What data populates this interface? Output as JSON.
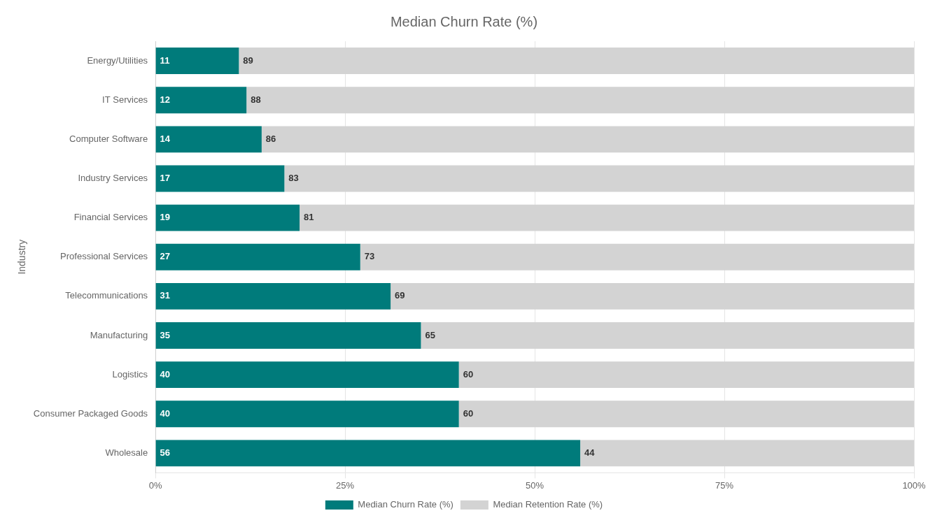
{
  "chart_data": {
    "type": "bar",
    "orientation": "horizontal",
    "stacked": true,
    "title": "Median Churn Rate (%)",
    "ylabel": "Industry",
    "categories": [
      "Energy/Utilities",
      "IT Services",
      "Computer Software",
      "Industry Services",
      "Financial Services",
      "Professional Services",
      "Telecommunications",
      "Manufacturing",
      "Logistics",
      "Consumer Packaged Goods",
      "Wholesale"
    ],
    "series": [
      {
        "name": "Median Churn Rate (%)",
        "color": "#007B7B",
        "values": [
          11,
          12,
          14,
          17,
          19,
          27,
          31,
          35,
          40,
          40,
          56
        ]
      },
      {
        "name": "Median Retention Rate (%)",
        "color": "#D3D3D3",
        "values": [
          89,
          88,
          86,
          83,
          81,
          73,
          69,
          65,
          60,
          60,
          44
        ]
      }
    ],
    "xlim": [
      0,
      100
    ],
    "xticks": [
      {
        "value": 0,
        "label": "0%"
      },
      {
        "value": 25,
        "label": "25%"
      },
      {
        "value": 50,
        "label": "50%"
      },
      {
        "value": 75,
        "label": "75%"
      },
      {
        "value": 100,
        "label": "100%"
      }
    ],
    "grid": true,
    "legend": "bottom",
    "data_labels": true
  }
}
